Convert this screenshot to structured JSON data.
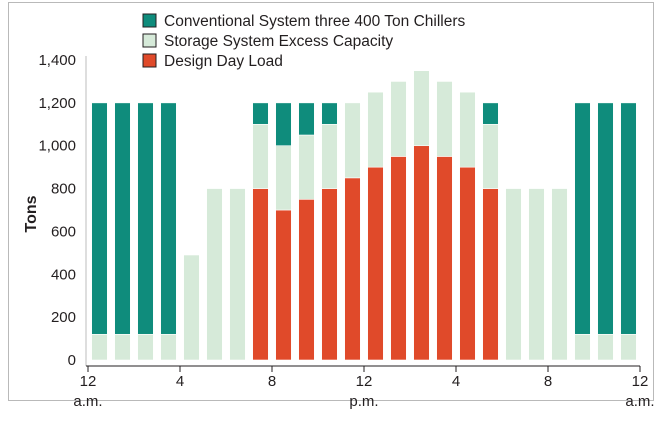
{
  "chart_data": {
    "type": "bar",
    "stacked": true,
    "ylabel": "Tons",
    "xlabel": "",
    "ylim": [
      0,
      1400
    ],
    "yticks": [
      0,
      200,
      400,
      600,
      800,
      1000,
      1200,
      1400
    ],
    "ytick_labels": [
      "0",
      "200",
      "400",
      "600",
      "800",
      "1,000",
      "1,200",
      "1,400"
    ],
    "x_tick_labels": [
      {
        "hour": 0,
        "label": "12",
        "sublabel": "a.m."
      },
      {
        "hour": 4,
        "label": "4",
        "sublabel": ""
      },
      {
        "hour": 8,
        "label": "8",
        "sublabel": ""
      },
      {
        "hour": 12,
        "label": "12",
        "sublabel": "p.m."
      },
      {
        "hour": 16,
        "label": "4",
        "sublabel": ""
      },
      {
        "hour": 20,
        "label": "8",
        "sublabel": ""
      },
      {
        "hour": 24,
        "label": "12",
        "sublabel": "a.m."
      }
    ],
    "hours": [
      1,
      2,
      3,
      4,
      5,
      6,
      7,
      8,
      9,
      10,
      11,
      12,
      13,
      14,
      15,
      16,
      17,
      18,
      19,
      20,
      21,
      22,
      23,
      24
    ],
    "legend_position": "top-left",
    "grid": false,
    "series": [
      {
        "name": "Design Day Load",
        "color": "#e04a2a",
        "values": [
          0,
          0,
          0,
          0,
          0,
          0,
          0,
          800,
          700,
          750,
          800,
          850,
          900,
          950,
          1000,
          950,
          900,
          800,
          0,
          0,
          0,
          0,
          0,
          0
        ]
      },
      {
        "name": "Storage System Excess Capacity",
        "color": "#d6ead9",
        "values": [
          120,
          120,
          120,
          120,
          490,
          800,
          800,
          300,
          300,
          300,
          300,
          350,
          350,
          350,
          350,
          350,
          350,
          300,
          800,
          800,
          800,
          120,
          120,
          120
        ]
      },
      {
        "name": "Conventional System three 400 Ton Chillers",
        "color": "#0f8c7c",
        "values": [
          1080,
          1080,
          1080,
          1080,
          0,
          0,
          0,
          100,
          200,
          150,
          100,
          0,
          0,
          0,
          0,
          0,
          0,
          100,
          0,
          0,
          0,
          1080,
          1080,
          1080
        ]
      }
    ],
    "legend_order": [
      2,
      1,
      0
    ]
  }
}
